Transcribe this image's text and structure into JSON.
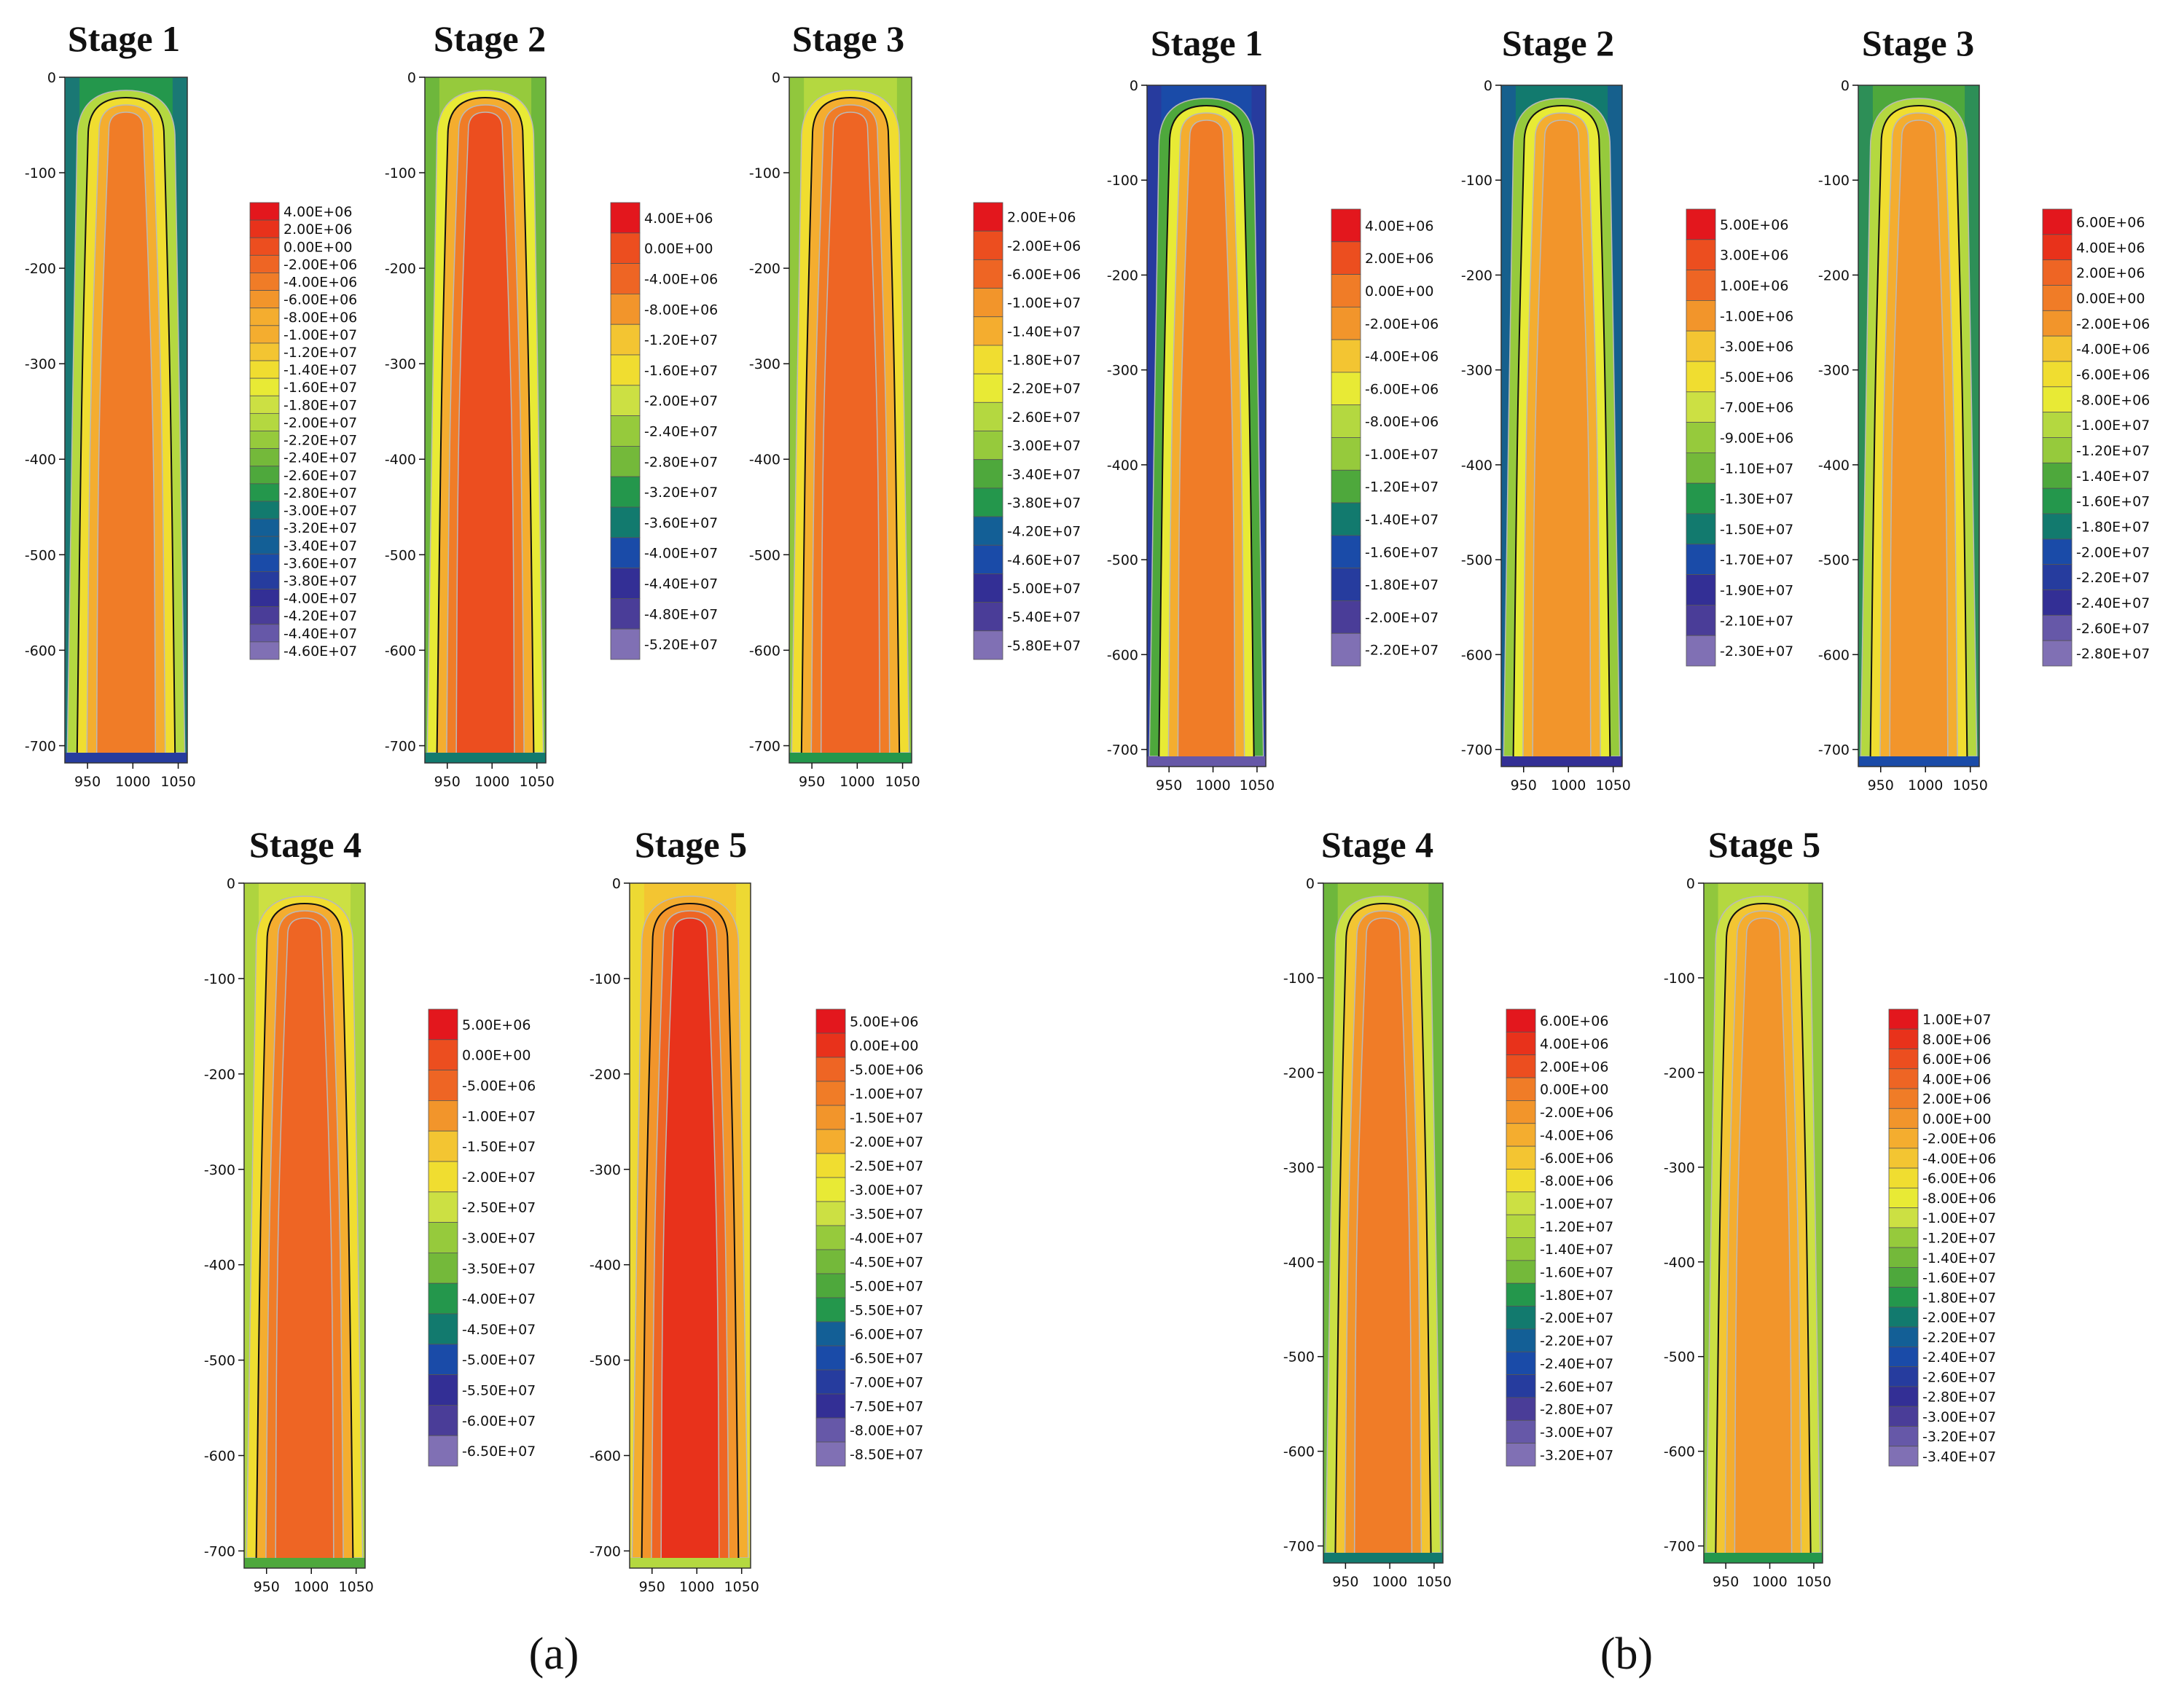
{
  "figure": {
    "group_labels": {
      "a": "(a)",
      "b": "(b)"
    }
  },
  "colors": {
    "palette": [
      "#e3171d",
      "#e8321b",
      "#ec4e1f",
      "#ee6524",
      "#f07c27",
      "#f2952b",
      "#f4ad2f",
      "#f3c532",
      "#f0dd30",
      "#e8ea35",
      "#cce043",
      "#b4d840",
      "#96ca3c",
      "#74b93a",
      "#4ea83c",
      "#24974c",
      "#127a6e",
      "#135f96",
      "#1a4ba8",
      "#263c9e",
      "#332f95",
      "#4a3d98",
      "#6658a8",
      "#8070b4"
    ],
    "line": "#111111",
    "contour_light": "#b9b9b9"
  },
  "chart_data": [
    {
      "id": "a1",
      "type": "heatmap",
      "group": "(a)",
      "title": "Stage 1",
      "xticks": [
        "950",
        "1000",
        "1050"
      ],
      "yticks": [
        "0",
        "-100",
        "-200",
        "-300",
        "-400",
        "-500",
        "-600",
        "-700"
      ],
      "xlim": [
        925,
        1060
      ],
      "ylim": [
        -718,
        0
      ],
      "legend": [
        "4.00E+06",
        "2.00E+06",
        "0.00E+00",
        "-2.00E+06",
        "-4.00E+06",
        "-6.00E+06",
        "-8.00E+06",
        "-1.00E+07",
        "-1.20E+07",
        "-1.40E+07",
        "-1.60E+07",
        "-1.80E+07",
        "-2.00E+07",
        "-2.20E+07",
        "-2.40E+07",
        "-2.60E+07",
        "-2.80E+07",
        "-3.00E+07",
        "-3.20E+07",
        "-3.40E+07",
        "-3.60E+07",
        "-3.80E+07",
        "-4.00E+07",
        "-4.20E+07",
        "-4.40E+07",
        "-4.60E+07"
      ]
    },
    {
      "id": "a2",
      "type": "heatmap",
      "group": "(a)",
      "title": "Stage 2",
      "xticks": [
        "950",
        "1000",
        "1050"
      ],
      "yticks": [
        "0",
        "-100",
        "-200",
        "-300",
        "-400",
        "-500",
        "-600",
        "-700"
      ],
      "xlim": [
        925,
        1060
      ],
      "ylim": [
        -718,
        0
      ],
      "legend": [
        "4.00E+06",
        "0.00E+00",
        "-4.00E+06",
        "-8.00E+06",
        "-1.20E+07",
        "-1.60E+07",
        "-2.00E+07",
        "-2.40E+07",
        "-2.80E+07",
        "-3.20E+07",
        "-3.60E+07",
        "-4.00E+07",
        "-4.40E+07",
        "-4.80E+07",
        "-5.20E+07"
      ]
    },
    {
      "id": "a3",
      "type": "heatmap",
      "group": "(a)",
      "title": "Stage 3",
      "xticks": [
        "950",
        "1000",
        "1050"
      ],
      "yticks": [
        "0",
        "-100",
        "-200",
        "-300",
        "-400",
        "-500",
        "-600",
        "-700"
      ],
      "xlim": [
        925,
        1060
      ],
      "ylim": [
        -718,
        0
      ],
      "legend": [
        "2.00E+06",
        "-2.00E+06",
        "-6.00E+06",
        "-1.00E+07",
        "-1.40E+07",
        "-1.80E+07",
        "-2.20E+07",
        "-2.60E+07",
        "-3.00E+07",
        "-3.40E+07",
        "-3.80E+07",
        "-4.20E+07",
        "-4.60E+07",
        "-5.00E+07",
        "-5.40E+07",
        "-5.80E+07"
      ]
    },
    {
      "id": "a4",
      "type": "heatmap",
      "group": "(a)",
      "title": "Stage 4",
      "xticks": [
        "950",
        "1000",
        "1050"
      ],
      "yticks": [
        "0",
        "-100",
        "-200",
        "-300",
        "-400",
        "-500",
        "-600",
        "-700"
      ],
      "xlim": [
        925,
        1060
      ],
      "ylim": [
        -718,
        0
      ],
      "legend": [
        "5.00E+06",
        "0.00E+00",
        "-5.00E+06",
        "-1.00E+07",
        "-1.50E+07",
        "-2.00E+07",
        "-2.50E+07",
        "-3.00E+07",
        "-3.50E+07",
        "-4.00E+07",
        "-4.50E+07",
        "-5.00E+07",
        "-5.50E+07",
        "-6.00E+07",
        "-6.50E+07"
      ]
    },
    {
      "id": "a5",
      "type": "heatmap",
      "group": "(a)",
      "title": "Stage 5",
      "xticks": [
        "950",
        "1000",
        "1050"
      ],
      "yticks": [
        "0",
        "-100",
        "-200",
        "-300",
        "-400",
        "-500",
        "-600",
        "-700"
      ],
      "xlim": [
        925,
        1060
      ],
      "ylim": [
        -718,
        0
      ],
      "legend": [
        "5.00E+06",
        "0.00E+00",
        "-5.00E+06",
        "-1.00E+07",
        "-1.50E+07",
        "-2.00E+07",
        "-2.50E+07",
        "-3.00E+07",
        "-3.50E+07",
        "-4.00E+07",
        "-4.50E+07",
        "-5.00E+07",
        "-5.50E+07",
        "-6.00E+07",
        "-6.50E+07",
        "-7.00E+07",
        "-7.50E+07",
        "-8.00E+07",
        "-8.50E+07"
      ]
    },
    {
      "id": "b1",
      "type": "heatmap",
      "group": "(b)",
      "title": "Stage 1",
      "xticks": [
        "950",
        "1000",
        "1050"
      ],
      "yticks": [
        "0",
        "-100",
        "-200",
        "-300",
        "-400",
        "-500",
        "-600",
        "-700"
      ],
      "xlim": [
        925,
        1060
      ],
      "ylim": [
        -718,
        0
      ],
      "legend": [
        "4.00E+06",
        "2.00E+06",
        "0.00E+00",
        "-2.00E+06",
        "-4.00E+06",
        "-6.00E+06",
        "-8.00E+06",
        "-1.00E+07",
        "-1.20E+07",
        "-1.40E+07",
        "-1.60E+07",
        "-1.80E+07",
        "-2.00E+07",
        "-2.20E+07"
      ]
    },
    {
      "id": "b2",
      "type": "heatmap",
      "group": "(b)",
      "title": "Stage 2",
      "xticks": [
        "950",
        "1000",
        "1050"
      ],
      "yticks": [
        "0",
        "-100",
        "-200",
        "-300",
        "-400",
        "-500",
        "-600",
        "-700"
      ],
      "xlim": [
        925,
        1060
      ],
      "ylim": [
        -718,
        0
      ],
      "legend": [
        "5.00E+06",
        "3.00E+06",
        "1.00E+06",
        "-1.00E+06",
        "-3.00E+06",
        "-5.00E+06",
        "-7.00E+06",
        "-9.00E+06",
        "-1.10E+07",
        "-1.30E+07",
        "-1.50E+07",
        "-1.70E+07",
        "-1.90E+07",
        "-2.10E+07",
        "-2.30E+07"
      ]
    },
    {
      "id": "b3",
      "type": "heatmap",
      "group": "(b)",
      "title": "Stage 3",
      "xticks": [
        "950",
        "1000",
        "1050"
      ],
      "yticks": [
        "0",
        "-100",
        "-200",
        "-300",
        "-400",
        "-500",
        "-600",
        "-700"
      ],
      "xlim": [
        925,
        1060
      ],
      "ylim": [
        -718,
        0
      ],
      "legend": [
        "6.00E+06",
        "4.00E+06",
        "2.00E+06",
        "0.00E+00",
        "-2.00E+06",
        "-4.00E+06",
        "-6.00E+06",
        "-8.00E+06",
        "-1.00E+07",
        "-1.20E+07",
        "-1.40E+07",
        "-1.60E+07",
        "-1.80E+07",
        "-2.00E+07",
        "-2.20E+07",
        "-2.40E+07",
        "-2.60E+07",
        "-2.80E+07"
      ]
    },
    {
      "id": "b4",
      "type": "heatmap",
      "group": "(b)",
      "title": "Stage 4",
      "xticks": [
        "950",
        "1000",
        "1050"
      ],
      "yticks": [
        "0",
        "-100",
        "-200",
        "-300",
        "-400",
        "-500",
        "-600",
        "-700"
      ],
      "xlim": [
        925,
        1060
      ],
      "ylim": [
        -718,
        0
      ],
      "legend": [
        "6.00E+06",
        "4.00E+06",
        "2.00E+06",
        "0.00E+00",
        "-2.00E+06",
        "-4.00E+06",
        "-6.00E+06",
        "-8.00E+06",
        "-1.00E+07",
        "-1.20E+07",
        "-1.40E+07",
        "-1.60E+07",
        "-1.80E+07",
        "-2.00E+07",
        "-2.20E+07",
        "-2.40E+07",
        "-2.60E+07",
        "-2.80E+07",
        "-3.00E+07",
        "-3.20E+07"
      ]
    },
    {
      "id": "b5",
      "type": "heatmap",
      "group": "(b)",
      "title": "Stage 5",
      "xticks": [
        "950",
        "1000",
        "1050"
      ],
      "yticks": [
        "0",
        "-100",
        "-200",
        "-300",
        "-400",
        "-500",
        "-600",
        "-700"
      ],
      "xlim": [
        925,
        1060
      ],
      "ylim": [
        -718,
        0
      ],
      "legend": [
        "1.00E+07",
        "8.00E+06",
        "6.00E+06",
        "4.00E+06",
        "2.00E+06",
        "0.00E+00",
        "-2.00E+06",
        "-4.00E+06",
        "-6.00E+06",
        "-8.00E+06",
        "-1.00E+07",
        "-1.20E+07",
        "-1.40E+07",
        "-1.60E+07",
        "-1.80E+07",
        "-2.00E+07",
        "-2.20E+07",
        "-2.40E+07",
        "-2.60E+07",
        "-2.80E+07",
        "-3.00E+07",
        "-3.20E+07",
        "-3.40E+07"
      ]
    }
  ]
}
